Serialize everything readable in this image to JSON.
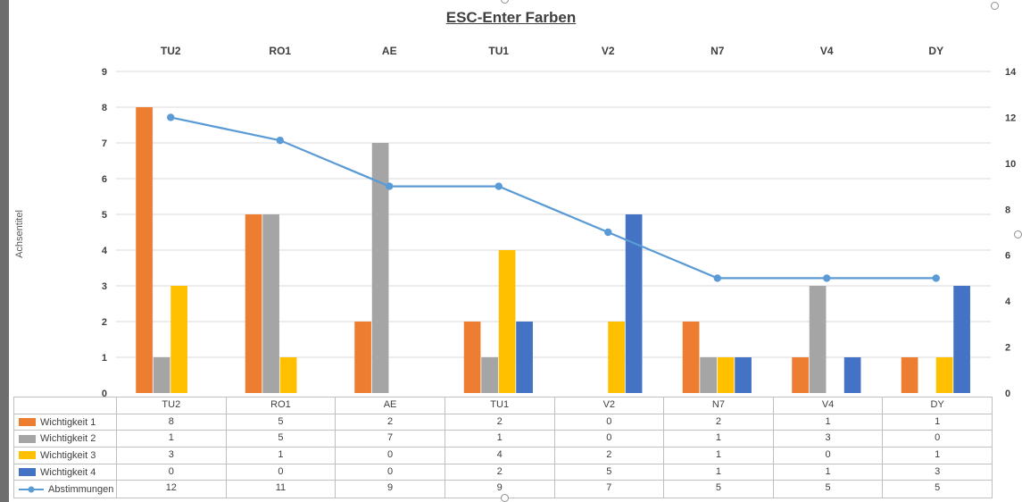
{
  "chart_data": {
    "type": "combo-bar-line",
    "title": "ESC-Enter Farben",
    "ylabel": "Achsentitel",
    "categories": [
      "TU2",
      "RO1",
      "AE",
      "TU1",
      "V2",
      "N7",
      "V4",
      "DY"
    ],
    "series": [
      {
        "name": "Wichtigkeit 1",
        "type": "bar",
        "color": "#ED7D31",
        "values": [
          8,
          5,
          2,
          2,
          0,
          2,
          1,
          1
        ]
      },
      {
        "name": "Wichtigkeit 2",
        "type": "bar",
        "color": "#A5A5A5",
        "values": [
          1,
          5,
          7,
          1,
          0,
          1,
          3,
          0
        ]
      },
      {
        "name": "Wichtigkeit 3",
        "type": "bar",
        "color": "#FFC000",
        "values": [
          3,
          1,
          0,
          4,
          2,
          1,
          0,
          1
        ]
      },
      {
        "name": "Wichtigkeit 4",
        "type": "bar",
        "color": "#4472C4",
        "values": [
          0,
          0,
          0,
          2,
          5,
          1,
          1,
          3
        ]
      },
      {
        "name": "Abstimmungen",
        "type": "line",
        "axis": "right",
        "color": "#5B9BD5",
        "values": [
          12,
          11,
          9,
          9,
          7,
          5,
          5,
          5
        ]
      }
    ],
    "left_axis": {
      "min": 0,
      "max": 9,
      "ticks": [
        9,
        8,
        7,
        6,
        5,
        4,
        3,
        2,
        1,
        0
      ]
    },
    "right_axis": {
      "min": 0,
      "max": 14,
      "ticks": [
        14,
        12,
        10,
        8,
        6,
        4,
        2,
        0
      ]
    },
    "grid": true,
    "data_table": true,
    "legend_position": "data-table-left"
  },
  "colors": {
    "grid": "#D9D9D9",
    "axis_text": "#404040",
    "table_border": "#BFBFBF",
    "title": "#3F3F3F",
    "axis_title": "#595959",
    "edge_strip": "#6E6E6E"
  }
}
